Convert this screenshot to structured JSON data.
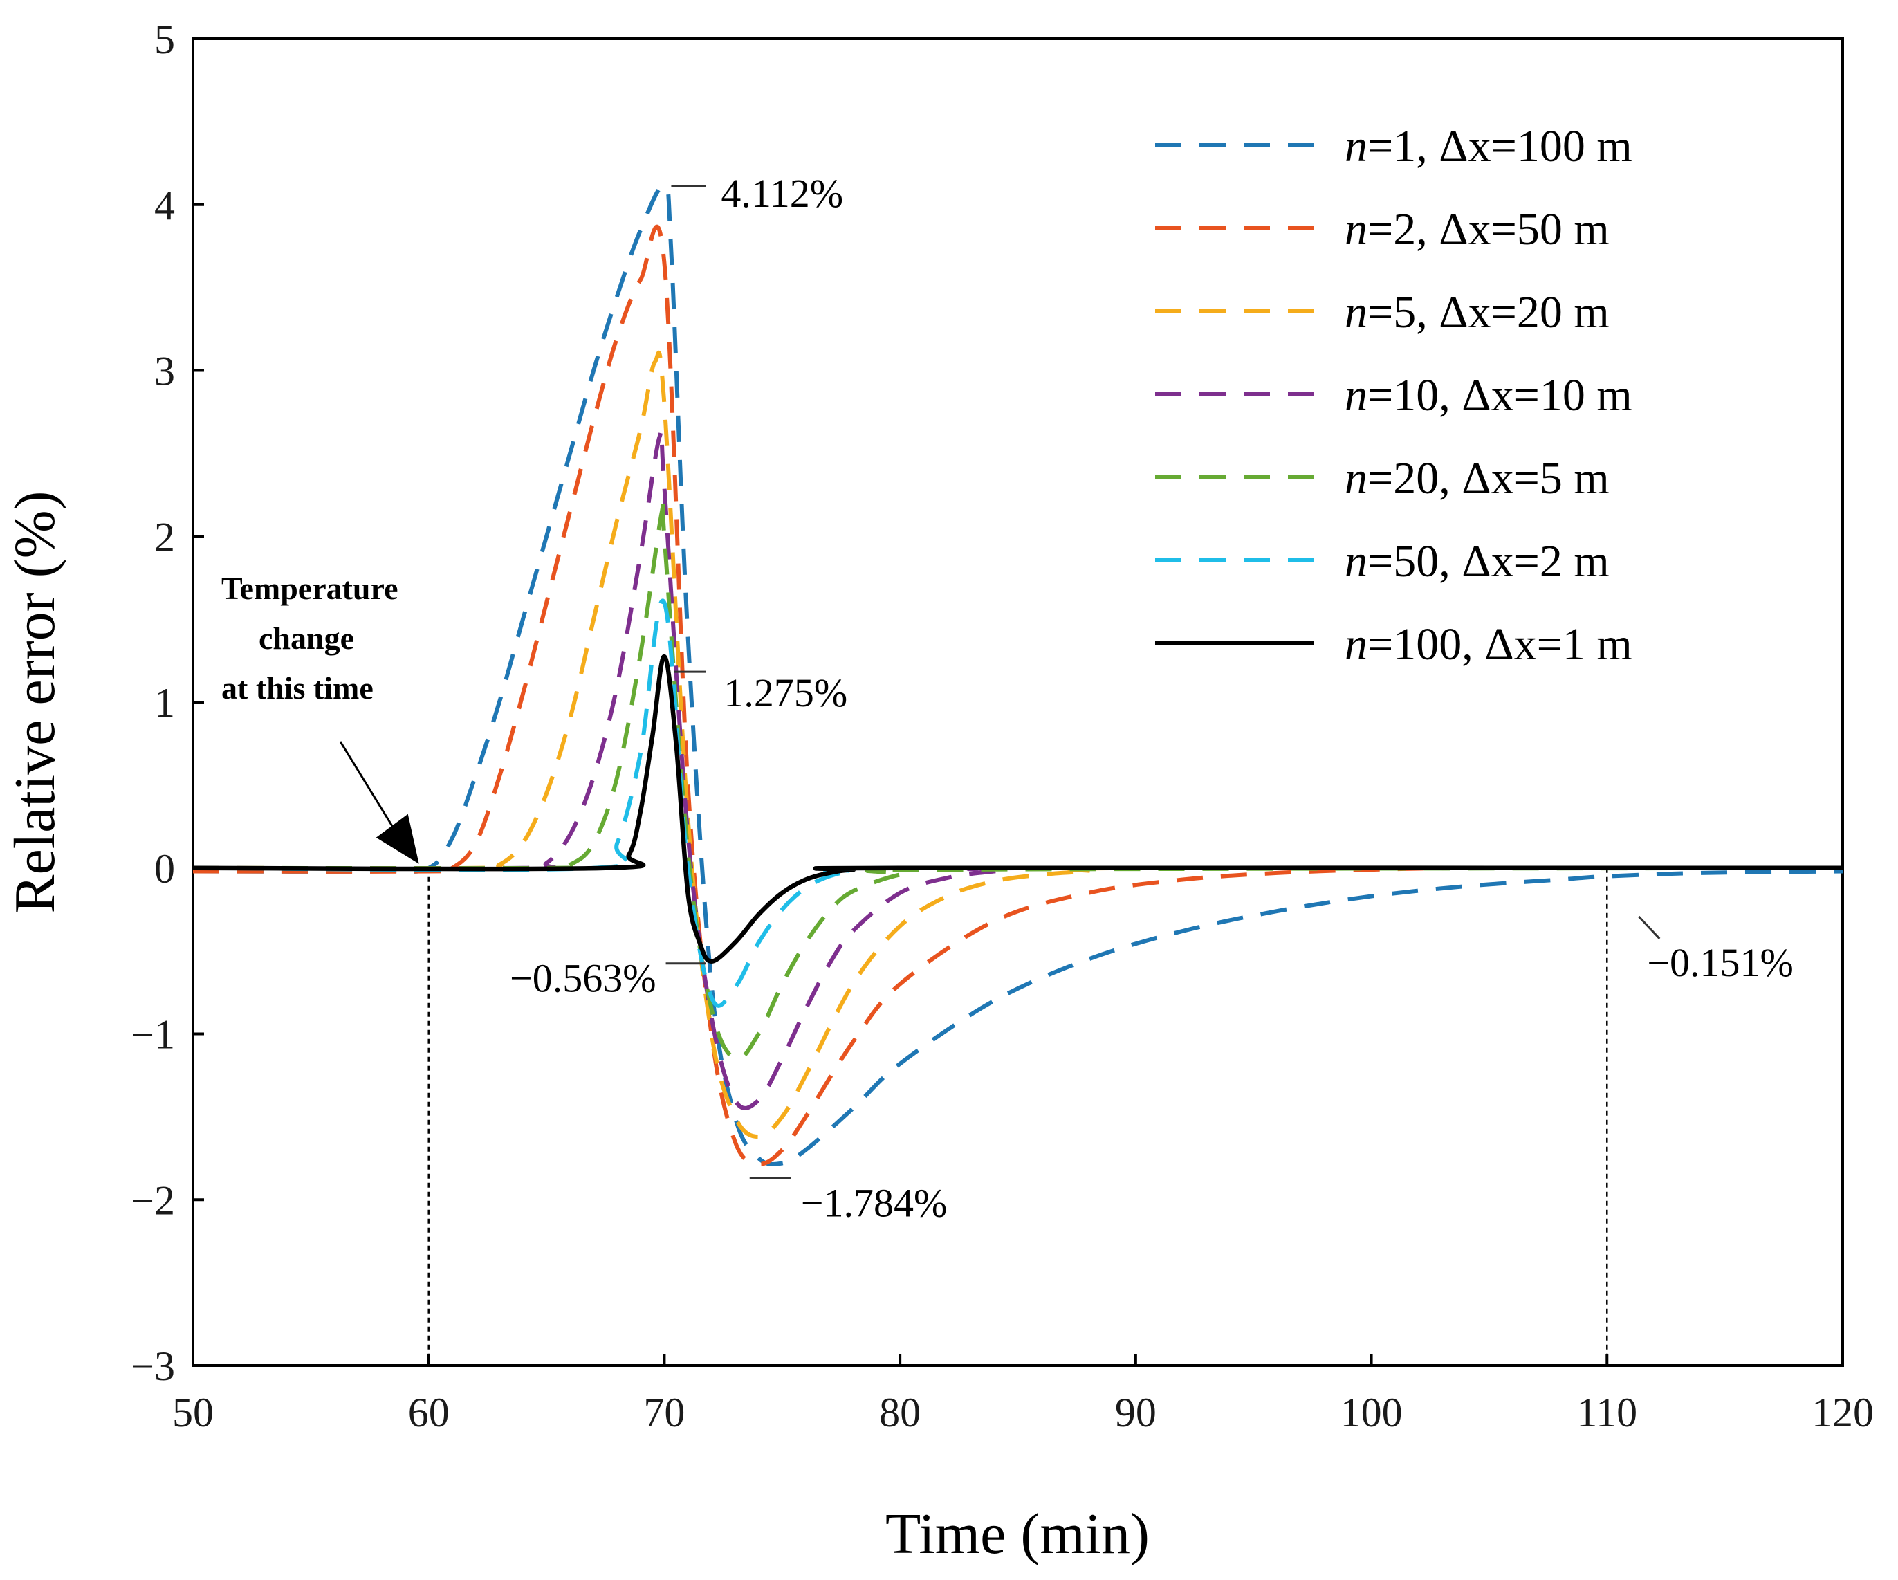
{
  "chart_data": {
    "type": "line",
    "title": "",
    "xlabel": "Time (min)",
    "ylabel": "Relative error (%)",
    "xlim": [
      50,
      120
    ],
    "ylim": [
      -3,
      5
    ],
    "x_ticks": [
      50,
      60,
      70,
      80,
      90,
      100,
      110,
      120
    ],
    "y_ticks": [
      5,
      4,
      3,
      2,
      1,
      0,
      -1,
      -2,
      -3
    ],
    "x_tick_labels": [
      "50",
      "60",
      "70",
      "80",
      "90",
      "100",
      "110",
      "120"
    ],
    "y_tick_labels": [
      "5",
      "4",
      "3",
      "2",
      "1",
      "0",
      "−1",
      "−2",
      "−3"
    ],
    "grid": false,
    "legend_position": "top-right",
    "series": [
      {
        "name_italic": "n",
        "name_rest": "=1, Δx=100 m",
        "color": "#1f77b4",
        "dashed": true,
        "x": [
          50,
          58,
          60,
          61,
          62,
          63,
          64,
          65,
          66,
          67,
          68,
          69,
          70,
          70.3,
          71,
          72,
          73,
          74,
          75,
          76,
          78,
          80,
          84,
          88,
          92,
          96,
          100,
          104,
          108,
          110,
          114,
          120
        ],
        "y": [
          -0.02,
          -0.02,
          0,
          0.18,
          0.56,
          1.0,
          1.5,
          2.0,
          2.5,
          3.0,
          3.45,
          3.85,
          4.112,
          3.7,
          1.4,
          -0.7,
          -1.5,
          -1.75,
          -1.78,
          -1.7,
          -1.45,
          -1.18,
          -0.8,
          -0.55,
          -0.38,
          -0.26,
          -0.17,
          -0.11,
          -0.07,
          -0.05,
          -0.03,
          -0.02
        ]
      },
      {
        "name_italic": "n",
        "name_rest": "=2, Δx=50 m",
        "color": "#e8531f",
        "dashed": true,
        "x": [
          50,
          60,
          61,
          62,
          63,
          64,
          65,
          66,
          67,
          68,
          69,
          70,
          71,
          72,
          73,
          74,
          75,
          76,
          78,
          80,
          84,
          88,
          92,
          96,
          100,
          104,
          110,
          120
        ],
        "y": [
          -0.02,
          -0.02,
          0,
          0.15,
          0.55,
          1.05,
          1.6,
          2.15,
          2.7,
          3.2,
          3.55,
          3.65,
          0.5,
          -1.0,
          -1.65,
          -1.784,
          -1.7,
          -1.5,
          -1.05,
          -0.7,
          -0.32,
          -0.15,
          -0.07,
          -0.03,
          -0.01,
          0,
          0,
          0
        ]
      },
      {
        "name_italic": "n",
        "name_rest": "=5, Δx=20 m",
        "color": "#f5ac1b",
        "dashed": true,
        "x": [
          50,
          62,
          63,
          64,
          65,
          66,
          67,
          68,
          69,
          69.6,
          70,
          71,
          72,
          73,
          74,
          75,
          76,
          78,
          80,
          82,
          84,
          86,
          88,
          90,
          120
        ],
        "y": [
          0,
          0,
          0.02,
          0.15,
          0.45,
          0.9,
          1.5,
          2.1,
          2.65,
          3.05,
          2.8,
          0.3,
          -1.0,
          -1.5,
          -1.62,
          -1.5,
          -1.25,
          -0.7,
          -0.35,
          -0.17,
          -0.08,
          -0.04,
          -0.02,
          0,
          0
        ]
      },
      {
        "name_italic": "n",
        "name_rest": "=10, Δx=10 m",
        "color": "#7e2f8e",
        "dashed": true,
        "x": [
          50,
          64,
          65,
          66,
          67,
          68,
          69,
          69.8,
          70,
          71,
          72,
          73,
          74,
          75,
          76,
          77,
          78,
          80,
          82,
          84,
          86,
          120
        ],
        "y": [
          0,
          0,
          0.03,
          0.2,
          0.55,
          1.1,
          1.9,
          2.6,
          2.3,
          0.2,
          -0.9,
          -1.4,
          -1.4,
          -1.15,
          -0.85,
          -0.58,
          -0.38,
          -0.15,
          -0.06,
          -0.02,
          0,
          0
        ]
      },
      {
        "name_italic": "n",
        "name_rest": "=20, Δx=5 m",
        "color": "#66aa33",
        "dashed": true,
        "x": [
          50,
          65,
          66,
          67,
          68,
          69,
          69.9,
          70,
          71,
          72,
          73,
          74,
          75,
          76,
          77,
          78,
          80,
          82,
          120
        ],
        "y": [
          0,
          0,
          0.02,
          0.15,
          0.55,
          1.3,
          2.15,
          2.0,
          0.1,
          -0.85,
          -1.15,
          -1.0,
          -0.7,
          -0.45,
          -0.26,
          -0.14,
          -0.04,
          -0.01,
          0
        ]
      },
      {
        "name_italic": "n",
        "name_rest": "=50, Δx=2 m",
        "color": "#1fbde8",
        "dashed": true,
        "x": [
          50,
          67,
          68,
          69,
          70,
          71,
          72,
          73,
          74,
          75,
          76,
          77,
          78,
          80,
          120
        ],
        "y": [
          0,
          0,
          0.15,
          0.7,
          1.6,
          0.0,
          -0.78,
          -0.72,
          -0.45,
          -0.25,
          -0.12,
          -0.05,
          -0.02,
          0,
          0
        ]
      },
      {
        "name_italic": "n",
        "name_rest": "=100, Δx=1 m",
        "color": "#000000",
        "dashed": false,
        "x": [
          50,
          67.5,
          68.5,
          69,
          69.5,
          70,
          70.5,
          71,
          71.5,
          72,
          73,
          74,
          75,
          76,
          77,
          78,
          80,
          120
        ],
        "y": [
          0,
          0,
          0.08,
          0.35,
          0.8,
          1.275,
          0.75,
          -0.15,
          -0.45,
          -0.563,
          -0.45,
          -0.28,
          -0.15,
          -0.07,
          -0.03,
          -0.01,
          0,
          0
        ]
      }
    ],
    "annotations": [
      {
        "text": "4.112%",
        "x": 70,
        "y": 4.112
      },
      {
        "text": "1.275%",
        "x": 70,
        "y": 1.275
      },
      {
        "text": "−0.563%",
        "x": 72,
        "y": -0.563
      },
      {
        "text": "−1.784%",
        "x": 74.5,
        "y": -1.784
      },
      {
        "text": "−0.151%",
        "x": 110,
        "y": -0.151
      }
    ],
    "note": {
      "lines": [
        "Temperature",
        "change",
        "at this time"
      ],
      "x": 60,
      "y": 0
    },
    "reference_lines_x": [
      60,
      110
    ]
  }
}
